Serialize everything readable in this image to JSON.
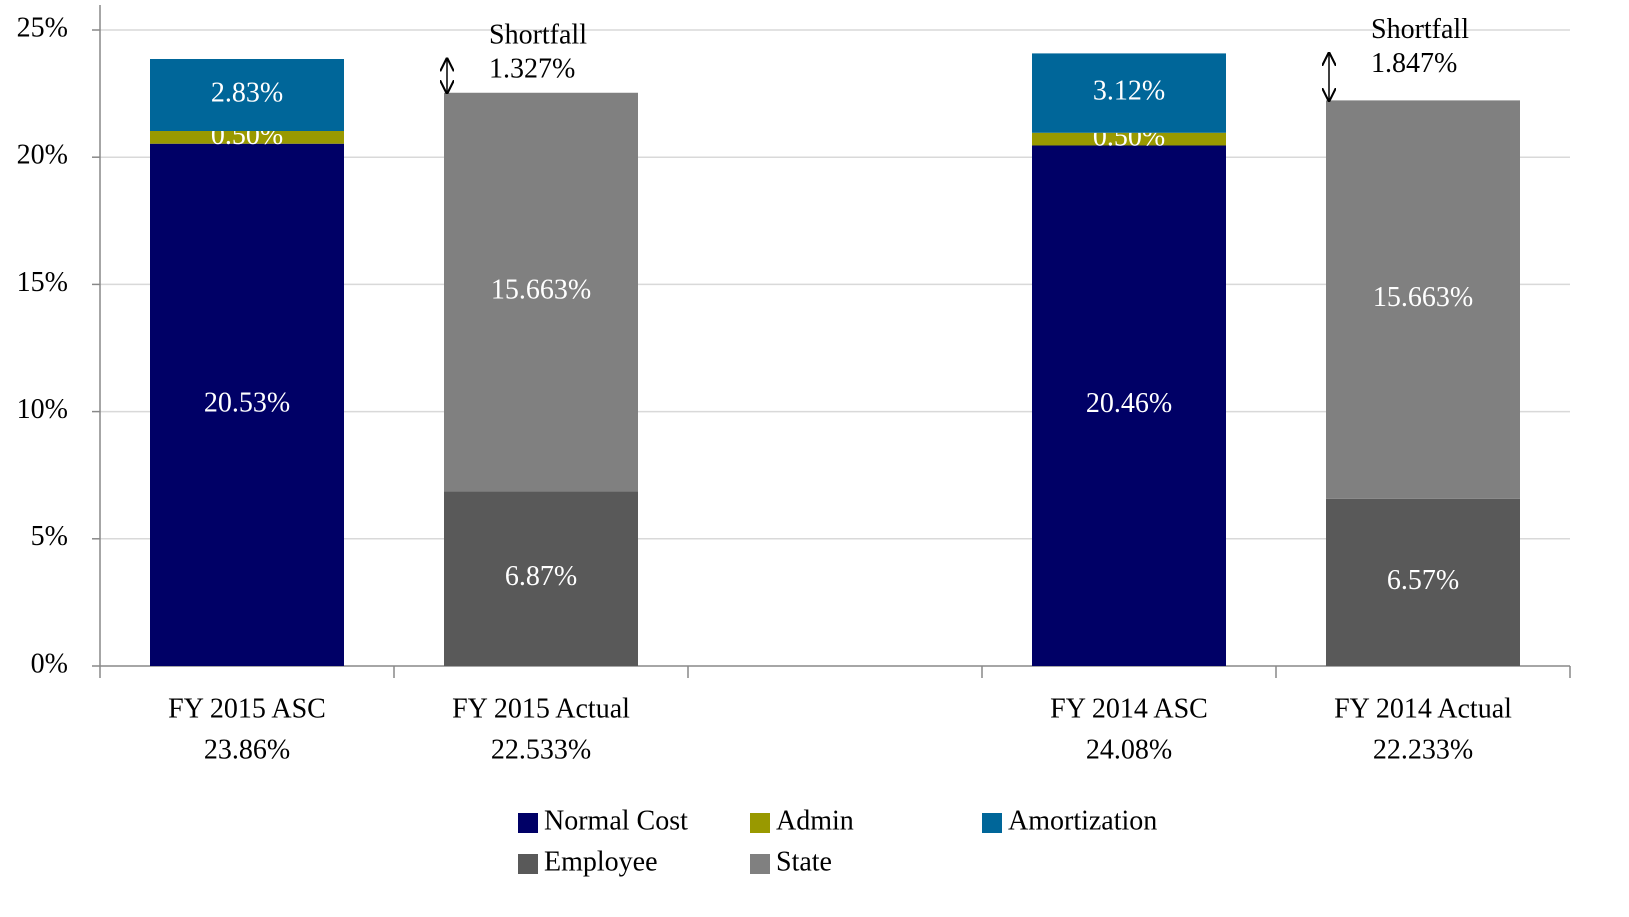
{
  "chart_data": {
    "type": "stacked_bar",
    "categories": [
      "FY 2015 ASC",
      "FY 2015 Actual",
      null,
      "FY 2014 ASC",
      "FY 2014 Actual"
    ],
    "total_labels": [
      "23.86%",
      "22.533%",
      null,
      "24.08%",
      "22.233%"
    ],
    "series": [
      {
        "name": "Normal Cost",
        "color": "#000066",
        "values": [
          20.53,
          null,
          null,
          20.46,
          null
        ],
        "value_labels": [
          "20.53%",
          null,
          null,
          "20.46%",
          null
        ]
      },
      {
        "name": "Admin",
        "color": "#999900",
        "values": [
          0.5,
          null,
          null,
          0.5,
          null
        ],
        "value_labels": [
          "0.50%",
          null,
          null,
          "0.50%",
          null
        ]
      },
      {
        "name": "Amortization",
        "color": "#006699",
        "values": [
          2.83,
          null,
          null,
          3.12,
          null
        ],
        "value_labels": [
          "2.83%",
          null,
          null,
          "3.12%",
          null
        ]
      },
      {
        "name": "Employee",
        "color": "#595959",
        "values": [
          null,
          6.87,
          null,
          null,
          6.57
        ],
        "value_labels": [
          null,
          "6.87%",
          null,
          null,
          "6.57%"
        ]
      },
      {
        "name": "State",
        "color": "#808080",
        "values": [
          null,
          15.663,
          null,
          null,
          15.663
        ],
        "value_labels": [
          null,
          "15.663%",
          null,
          null,
          "15.663%"
        ]
      }
    ],
    "annotations": [
      {
        "label": "Shortfall",
        "category": 1,
        "value": 1.327,
        "value_label": "1.327%"
      },
      {
        "label": "Shortfall",
        "category": 4,
        "value": 1.847,
        "value_label": "1.847%"
      }
    ],
    "ylim": [
      0,
      25
    ],
    "yticks": [
      {
        "value": 0,
        "label": "0%"
      },
      {
        "value": 5,
        "label": "5%"
      },
      {
        "value": 10,
        "label": "10%"
      },
      {
        "value": 15,
        "label": "15%"
      },
      {
        "value": 20,
        "label": "20%"
      },
      {
        "value": 25,
        "label": "25%"
      }
    ],
    "grid": true
  }
}
